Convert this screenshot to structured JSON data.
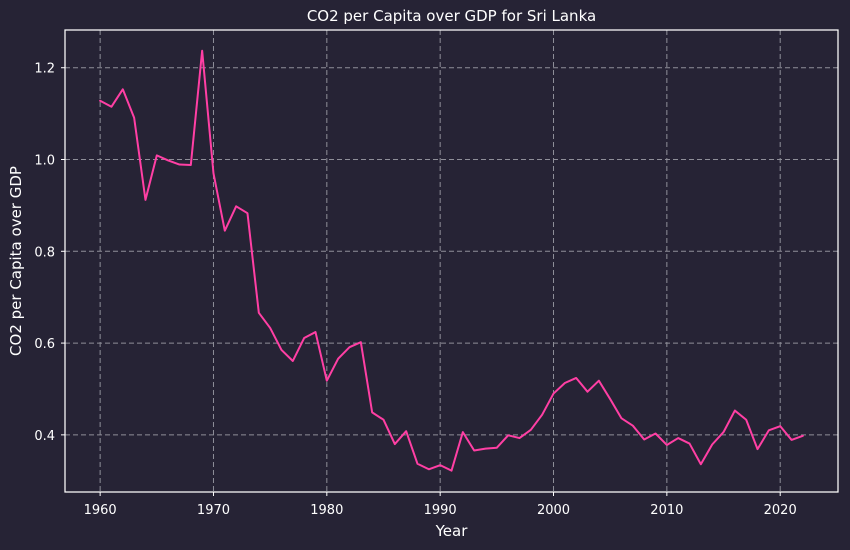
{
  "chart_data": {
    "type": "line",
    "title": "CO2 per Capita over GDP for Sri Lanka",
    "xlabel": "Year",
    "ylabel": "CO2 per Capita over GDP",
    "xlim": [
      1956.9,
      2025.1
    ],
    "ylim": [
      0.2755,
      1.2822
    ],
    "xticks": [
      1960,
      1970,
      1980,
      1990,
      2000,
      2010,
      2020
    ],
    "yticks": [
      0.4,
      0.6,
      0.8,
      1.0,
      1.2
    ],
    "ytick_labels": [
      "0.4",
      "0.6",
      "0.8",
      "1.0",
      "1.2"
    ],
    "grid": true,
    "grid_style": "dashed",
    "series": [
      {
        "color": "#ff3fa4",
        "x": [
          1960,
          1961,
          1962,
          1963,
          1964,
          1965,
          1966,
          1967,
          1968,
          1969,
          1970,
          1971,
          1972,
          1973,
          1974,
          1975,
          1976,
          1977,
          1978,
          1979,
          1980,
          1981,
          1982,
          1983,
          1984,
          1985,
          1986,
          1987,
          1988,
          1989,
          1990,
          1991,
          1992,
          1993,
          1994,
          1995,
          1996,
          1997,
          1998,
          1999,
          2000,
          2001,
          2002,
          2003,
          2004,
          2005,
          2006,
          2007,
          2008,
          2009,
          2010,
          2011,
          2012,
          2013,
          2014,
          2015,
          2016,
          2017,
          2018,
          2019,
          2020,
          2021,
          2022
        ],
        "y": [
          1.128,
          1.115,
          1.153,
          1.091,
          0.912,
          1.009,
          0.998,
          0.989,
          0.988,
          1.237,
          0.97,
          0.845,
          0.898,
          0.883,
          0.666,
          0.633,
          0.585,
          0.561,
          0.611,
          0.624,
          0.518,
          0.566,
          0.591,
          0.602,
          0.449,
          0.433,
          0.38,
          0.408,
          0.337,
          0.325,
          0.334,
          0.322,
          0.406,
          0.366,
          0.37,
          0.372,
          0.399,
          0.393,
          0.411,
          0.444,
          0.49,
          0.513,
          0.524,
          0.494,
          0.518,
          0.478,
          0.436,
          0.42,
          0.39,
          0.403,
          0.378,
          0.393,
          0.381,
          0.336,
          0.379,
          0.406,
          0.453,
          0.433,
          0.369,
          0.41,
          0.419,
          0.389,
          0.398
        ]
      }
    ],
    "colors": {
      "background": "#262335",
      "grid": "#8f8f99",
      "axes": "#ffffff",
      "text": "#ffffff"
    }
  }
}
